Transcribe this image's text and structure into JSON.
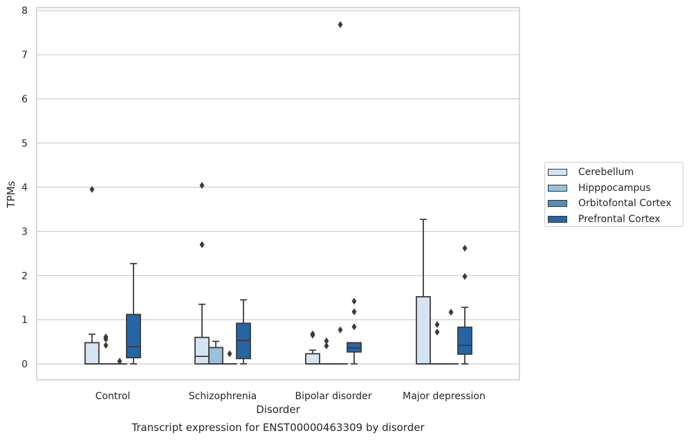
{
  "chart_data": {
    "type": "boxplot",
    "title": "",
    "caption": "Transcript expression for ENST00000463309 by disorder",
    "xlabel": "Disorder",
    "ylabel": "TPMs",
    "ylim": [
      -0.37,
      8.08
    ],
    "yticks": [
      "0",
      "1",
      "2",
      "3",
      "4",
      "5",
      "6",
      "7",
      "8"
    ],
    "grid": "horizontal",
    "legend_position": "right",
    "categories": [
      "Control",
      "Schizophrenia",
      "Bipolar disorder",
      "Major depression"
    ],
    "series": [
      {
        "name": "Cerebellum",
        "color": "#d5e4f2",
        "boxes": [
          {
            "q1": 0,
            "median": 0,
            "q3": 0.48,
            "whislo": 0,
            "whishi": 0.67,
            "fliers": [
              3.95
            ]
          },
          {
            "q1": 0,
            "median": 0.17,
            "q3": 0.6,
            "whislo": 0,
            "whishi": 1.35,
            "fliers": [
              4.04,
              2.7
            ]
          },
          {
            "q1": 0,
            "median": 0,
            "q3": 0.23,
            "whislo": 0,
            "whishi": 0.31,
            "fliers": [
              0.68,
              0.65
            ]
          },
          {
            "q1": 0,
            "median": 0,
            "q3": 1.52,
            "whislo": 0,
            "whishi": 3.27,
            "fliers": []
          }
        ]
      },
      {
        "name": "Hipppocampus",
        "color": "#9ac0db",
        "boxes": [
          {
            "q1": 0,
            "median": 0,
            "q3": 0,
            "whislo": 0,
            "whishi": 0,
            "fliers": [
              0.61,
              0.56,
              0.42
            ]
          },
          {
            "q1": 0,
            "median": 0,
            "q3": 0.37,
            "whislo": 0,
            "whishi": 0.51,
            "fliers": []
          },
          {
            "q1": 0,
            "median": 0,
            "q3": 0,
            "whislo": 0,
            "whishi": 0,
            "fliers": [
              0.52,
              0.41
            ]
          },
          {
            "q1": 0,
            "median": 0,
            "q3": 0,
            "whislo": 0,
            "whishi": 0,
            "fliers": [
              0.89,
              0.72
            ]
          }
        ]
      },
      {
        "name": "Orbitofontal Cortex",
        "color": "#4f8fc0",
        "boxes": [
          {
            "q1": 0,
            "median": 0,
            "q3": 0,
            "whislo": 0,
            "whishi": 0,
            "fliers": [
              0.06
            ]
          },
          {
            "q1": 0,
            "median": 0,
            "q3": 0,
            "whislo": 0,
            "whishi": 0,
            "fliers": [
              0.23
            ]
          },
          {
            "q1": 0,
            "median": 0,
            "q3": 0,
            "whislo": 0,
            "whishi": 0,
            "fliers": [
              7.68,
              0.77
            ]
          },
          {
            "q1": 0,
            "median": 0,
            "q3": 0,
            "whislo": 0,
            "whishi": 0,
            "fliers": [
              1.17
            ]
          }
        ]
      },
      {
        "name": "Prefrontal Cortex",
        "color": "#2565a6",
        "boxes": [
          {
            "q1": 0.14,
            "median": 0.39,
            "q3": 1.12,
            "whislo": 0,
            "whishi": 2.27,
            "fliers": []
          },
          {
            "q1": 0.12,
            "median": 0.53,
            "q3": 0.92,
            "whislo": 0,
            "whishi": 1.45,
            "fliers": []
          },
          {
            "q1": 0.27,
            "median": 0.36,
            "q3": 0.48,
            "whislo": 0,
            "whishi": 0.48,
            "fliers": [
              1.42,
              1.18,
              0.84
            ]
          },
          {
            "q1": 0.22,
            "median": 0.42,
            "q3": 0.83,
            "whislo": 0,
            "whishi": 1.28,
            "fliers": [
              2.62,
              1.98
            ]
          }
        ]
      }
    ]
  }
}
